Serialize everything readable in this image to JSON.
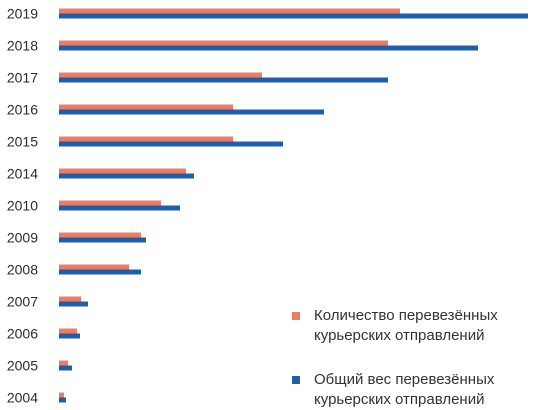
{
  "chart_data": {
    "type": "bar",
    "orientation": "horizontal",
    "categories": [
      "2019",
      "2018",
      "2017",
      "2016",
      "2015",
      "2014",
      "2010",
      "2009",
      "2008",
      "2007",
      "2006",
      "2005",
      "2004"
    ],
    "series": [
      {
        "name": "Количество перевезённых курьерских отправлений",
        "color": "#ee7b62",
        "values": [
          341,
          329,
          203,
          174,
          174,
          127,
          102,
          82,
          70,
          22,
          18,
          9,
          5
        ]
      },
      {
        "name": "Общий вес перевезённых курьерских отправлений",
        "color": "#1f5ea8",
        "values": [
          469,
          419,
          329,
          265,
          224,
          135,
          121,
          87,
          82,
          29,
          21,
          13,
          7
        ]
      }
    ],
    "xlim": [
      0,
      470
    ],
    "grid": false,
    "axis_labels_x": false,
    "legend_position": "bottom-right"
  }
}
